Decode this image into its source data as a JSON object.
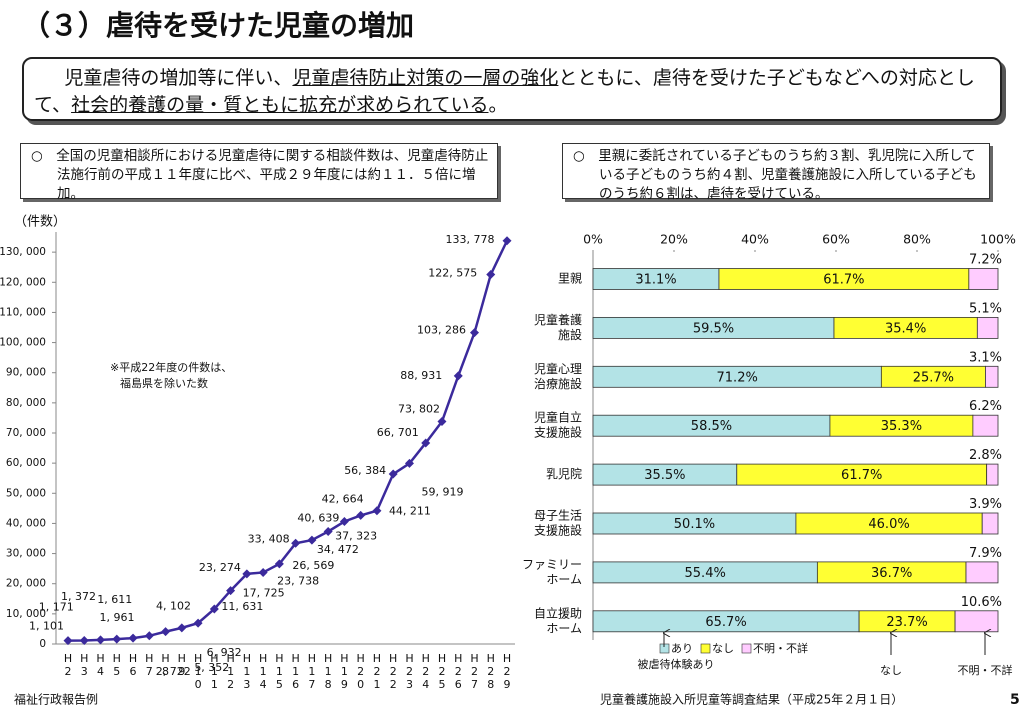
{
  "title": "（３）虐待を受けた児童の増加",
  "summary": {
    "parts": [
      "児童虐待の増加等に伴い、",
      "児童虐待防止対策の一層の強化",
      "とともに、虐待を受けた子どもなどへの対応として、",
      "社会的養護の量・質ともに拡充が求められている",
      "。"
    ]
  },
  "chart_data": [
    {
      "type": "line",
      "note": "○　全国の児童相談所における児童虐待に関する相談件数は、児童虐待防止法施行前の平成１１年度に比べ、平成２９年度には約１１．５倍に増加。",
      "y_label": "（件数）",
      "annotation": [
        "※平成22年度の件数は、",
        "福島県を除いた数"
      ],
      "source": "福祉行政報告例",
      "color": "#3b2a9c",
      "categories": [
        "H2",
        "H3",
        "H4",
        "H5",
        "H6",
        "H7",
        "H8",
        "H9",
        "H10",
        "H11",
        "H12",
        "H13",
        "H14",
        "H15",
        "H16",
        "H17",
        "H18",
        "H19",
        "H20",
        "H21",
        "H22",
        "H23",
        "H24",
        "H25",
        "H26",
        "H27",
        "H28",
        "H29"
      ],
      "values": [
        1101,
        1171,
        1372,
        1611,
        1961,
        2722,
        4102,
        5352,
        6932,
        11631,
        17725,
        23274,
        23738,
        26569,
        33408,
        34472,
        37323,
        40639,
        42664,
        44211,
        56384,
        59919,
        66701,
        73802,
        88931,
        103286,
        122575,
        133778
      ],
      "value_labels": [
        "1, 101",
        "1, 171",
        "1, 372",
        "1, 611",
        "1, 961",
        "2, 722",
        "4, 102",
        "5, 352",
        "6, 932",
        "11, 631",
        "17, 725",
        "23, 274",
        "23, 738",
        "26, 569",
        "33, 408",
        "34, 472",
        "37, 323",
        "40, 639",
        "42, 664",
        "44, 211",
        "56, 384",
        "59, 919",
        "66, 701",
        "73, 802",
        "88, 931",
        "103, 286",
        "122, 575",
        "133, 778"
      ],
      "ylim": [
        0,
        140000
      ],
      "yticks": [
        0,
        {
          "value": 10000,
          "label": "10, 000"
        },
        {
          "value": 20000,
          "label": "20, 000"
        },
        {
          "value": 30000,
          "label": "30, 000"
        },
        {
          "value": 40000,
          "label": "40, 000"
        },
        {
          "value": 50000,
          "label": "50, 000"
        },
        {
          "value": 60000,
          "label": "60, 000"
        },
        {
          "value": 70000,
          "label": "70, 000"
        },
        {
          "value": 80000,
          "label": "80, 000"
        },
        {
          "value": 90000,
          "label": "90, 000"
        },
        {
          "value": 100000,
          "label": "100, 000"
        },
        {
          "value": 110000,
          "label": "110, 000"
        },
        {
          "value": 120000,
          "label": "120, 000"
        },
        {
          "value": 130000,
          "label": "130, 000"
        }
      ]
    },
    {
      "type": "bar",
      "orientation": "horizontal",
      "stacked": true,
      "note": "○　里親に委託されている子どものうち約３割、乳児院に入所している子どものうち約４割、児童養護施設に入所している子どものうち約６割は、虐待を受けている。",
      "source": "児童養護施設入所児童等調査結果（平成25年２月１日）",
      "categories": [
        [
          "里親"
        ],
        [
          "児童養護",
          "施設"
        ],
        [
          "児童心理",
          "治療施設"
        ],
        [
          "児童自立",
          "支援施設"
        ],
        [
          "乳児院"
        ],
        [
          "母子生活",
          "支援施設"
        ],
        [
          "ファミリー",
          "ホーム"
        ],
        [
          "自立援助",
          "ホーム"
        ]
      ],
      "series": [
        {
          "name": "あり",
          "color": "#b3e3e6",
          "values": [
            31.1,
            59.5,
            71.2,
            58.5,
            35.5,
            50.1,
            55.4,
            65.7
          ],
          "value_labels": [
            "31.1%",
            "59.5%",
            "71.2%",
            "58.5%",
            "35.5%",
            "50.1%",
            "55.4%",
            "65.7%"
          ]
        },
        {
          "name": "なし",
          "color": "#ffff33",
          "values": [
            61.7,
            35.4,
            25.7,
            35.3,
            61.7,
            46.0,
            36.7,
            23.7
          ],
          "value_labels": [
            "61.7%",
            "35.4%",
            "25.7%",
            "35.3%",
            "61.7%",
            "46.0%",
            "36.7%",
            "23.7%"
          ]
        },
        {
          "name": "不明・不詳",
          "color": "#ffccff",
          "values": [
            7.2,
            5.1,
            3.1,
            6.2,
            2.8,
            3.9,
            7.9,
            10.6
          ],
          "value_labels": [
            "7.2%",
            "5.1%",
            "3.1%",
            "6.2%",
            "2.8%",
            "3.9%",
            "7.9%",
            "10.6%"
          ]
        }
      ],
      "callouts": [
        "被虐待体験あり",
        "なし",
        "不明・不詳"
      ],
      "xlim": [
        0,
        100
      ],
      "xticks": [
        {
          "value": 0,
          "label": "0%"
        },
        {
          "value": 20,
          "label": "20%"
        },
        {
          "value": 40,
          "label": "40%"
        },
        {
          "value": 60,
          "label": "60%"
        },
        {
          "value": 80,
          "label": "80%"
        },
        {
          "value": 100,
          "label": "100%"
        }
      ]
    }
  ],
  "page_number": "5"
}
